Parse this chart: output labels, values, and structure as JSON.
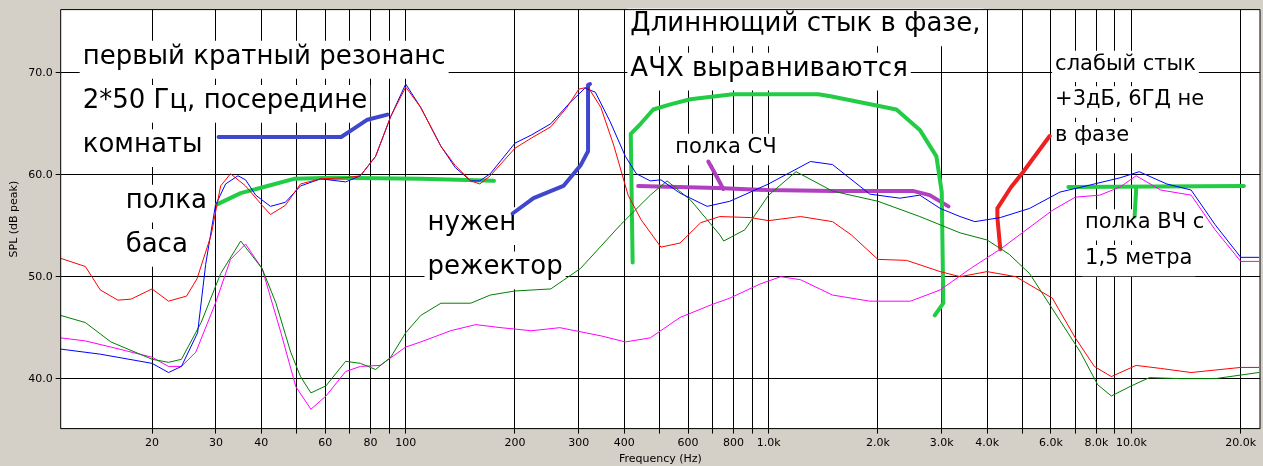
{
  "chart_data": {
    "type": "line",
    "xlabel": "Frequency (Hz)",
    "ylabel": "SPL (dB peak)",
    "log": "x",
    "grid": true,
    "legend": false,
    "marker": "none",
    "line_style": "solid",
    "xlim": [
      11.2,
      22600
    ],
    "ylim": [
      35.1,
      76.2
    ],
    "xticks": [
      {
        "value": 20,
        "label": "20"
      },
      {
        "value": 30,
        "label": "30"
      },
      {
        "value": 40,
        "label": "40"
      },
      {
        "value": 50,
        "label": null
      },
      {
        "value": 60,
        "label": "60"
      },
      {
        "value": 70,
        "label": null
      },
      {
        "value": 80,
        "label": "80"
      },
      {
        "value": 90,
        "label": null
      },
      {
        "value": 100,
        "label": "100"
      },
      {
        "value": 200,
        "label": "200"
      },
      {
        "value": 300,
        "label": "300"
      },
      {
        "value": 400,
        "label": "400"
      },
      {
        "value": 500,
        "label": null
      },
      {
        "value": 600,
        "label": "600"
      },
      {
        "value": 700,
        "label": null
      },
      {
        "value": 800,
        "label": "800"
      },
      {
        "value": 900,
        "label": null
      },
      {
        "value": 1000,
        "label": "1.0k"
      },
      {
        "value": 2000,
        "label": "2.0k"
      },
      {
        "value": 3000,
        "label": "3.0k"
      },
      {
        "value": 4000,
        "label": "4.0k"
      },
      {
        "value": 5000,
        "label": null
      },
      {
        "value": 6000,
        "label": "6.0k"
      },
      {
        "value": 7000,
        "label": null
      },
      {
        "value": 8000,
        "label": "8.0k"
      },
      {
        "value": 9000,
        "label": null
      },
      {
        "value": 10000,
        "label": "10.0k"
      },
      {
        "value": 20000,
        "label": "20.0k"
      }
    ],
    "yticks": [
      {
        "value": 40,
        "label": "40.0"
      },
      {
        "value": 50,
        "label": "50.0"
      },
      {
        "value": 60,
        "label": "60.0"
      },
      {
        "value": 70,
        "label": "70.0"
      }
    ],
    "series": [
      {
        "type": "line",
        "color": "#ff0000",
        "x": [
          11.2,
          13.1,
          14.4,
          16.1,
          17.5,
          20,
          22.2,
          24.9,
          26.6,
          29.1,
          30.9,
          32.9,
          36.2,
          40.2,
          42.4,
          46.6,
          51.3,
          58.3,
          68.3,
          75,
          82.6,
          90.9,
          100,
          110,
          125,
          137,
          151,
          160,
          171,
          200,
          222,
          251,
          278,
          300,
          318,
          345,
          375,
          410,
          445,
          505,
          570,
          650,
          734,
          889,
          1000,
          1225,
          1500,
          1690,
          2000,
          2400,
          2970,
          3370,
          4000,
          4800,
          6050,
          7000,
          7900,
          8800,
          10300,
          12040,
          14600,
          20000,
          22400
        ],
        "values": [
          51.8,
          51.0,
          48.7,
          47.7,
          47.8,
          48.8,
          47.6,
          48.1,
          49.8,
          54.1,
          58.9,
          60.1,
          58.9,
          57.0,
          56.1,
          57.0,
          59.1,
          59.6,
          59.7,
          59.9,
          61.8,
          65.7,
          68.6,
          66.6,
          62.8,
          60.9,
          59.4,
          59.1,
          59.9,
          62.6,
          63.6,
          64.7,
          66.6,
          68.4,
          68.6,
          66.6,
          62.8,
          58.0,
          55.6,
          52.9,
          53.3,
          55.3,
          55.9,
          55.8,
          55.5,
          55.9,
          55.4,
          54.1,
          51.7,
          51.6,
          50.5,
          50.0,
          50.5,
          50.0,
          47.9,
          44.0,
          41.2,
          40.2,
          41.3,
          41.0,
          40.6,
          41.1,
          41.1
        ]
      },
      {
        "type": "line",
        "color": "#0000ff",
        "x": [
          11.2,
          14.4,
          20,
          22.2,
          24.1,
          26.7,
          28.1,
          29.9,
          31.9,
          34.5,
          36.2,
          38.6,
          42.4,
          46.6,
          51.3,
          58.3,
          68.3,
          75,
          82.6,
          90.9,
          100,
          110,
          125,
          137,
          151,
          160,
          171,
          200,
          222,
          251,
          284,
          312,
          333,
          366,
          403,
          432,
          472,
          505,
          570,
          677,
          782,
          1000,
          1304,
          1500,
          1900,
          2300,
          2610,
          2970,
          3370,
          3700,
          4350,
          5240,
          6350,
          7700,
          9300,
          10500,
          12500,
          14600,
          17000,
          20000,
          22400
        ],
        "values": [
          42.9,
          42.4,
          41.5,
          40.6,
          41.2,
          44.5,
          51.2,
          57.0,
          59.1,
          59.9,
          59.5,
          58.0,
          56.9,
          57.3,
          58.9,
          59.6,
          59.3,
          59.9,
          61.8,
          65.7,
          68.9,
          66.6,
          62.8,
          60.7,
          59.4,
          59.4,
          60.1,
          63.1,
          63.9,
          65.0,
          67.1,
          68.5,
          68.1,
          65.2,
          61.8,
          60.1,
          59.4,
          59.5,
          58.2,
          56.9,
          57.4,
          59.1,
          61.3,
          61.0,
          58.1,
          57.7,
          58.0,
          56.7,
          55.9,
          55.4,
          55.8,
          56.7,
          58.3,
          59.0,
          59.7,
          60.3,
          59.1,
          58.5,
          55.1,
          51.9,
          51.9
        ]
      },
      {
        "type": "line",
        "color": "#008000",
        "x": [
          11.2,
          13.1,
          15.4,
          20,
          22.2,
          24.1,
          27.3,
          30.9,
          35.1,
          40.2,
          43.9,
          48.2,
          51.3,
          54.8,
          60.3,
          68.3,
          75,
          82.6,
          90.9,
          100,
          110,
          125,
          151,
          171,
          200,
          251,
          303,
          391,
          472,
          525,
          610,
          734,
          752,
          860,
          1000,
          1190,
          1500,
          2000,
          2610,
          3370,
          4000,
          4600,
          5240,
          6350,
          7230,
          8070,
          8800,
          10000,
          11200,
          13700,
          17000,
          22400
        ],
        "values": [
          46.2,
          45.5,
          43.6,
          41.9,
          41.6,
          41.9,
          45.5,
          50.3,
          53.5,
          50.8,
          47.4,
          42.6,
          40.2,
          38.6,
          39.3,
          41.7,
          41.5,
          40.9,
          42.1,
          44.5,
          46.2,
          47.4,
          47.4,
          48.2,
          48.6,
          48.8,
          50.8,
          55.1,
          58.0,
          59.4,
          57.5,
          54.1,
          53.5,
          54.6,
          58.0,
          60.3,
          58.4,
          57.4,
          55.9,
          54.3,
          53.6,
          52.2,
          50.3,
          45.7,
          42.6,
          39.4,
          38.3,
          39.3,
          40.1,
          40.0,
          40.0,
          40.6
        ]
      },
      {
        "type": "line",
        "color": "#ff00ff",
        "x": [
          11.2,
          13.1,
          15.4,
          20,
          22.2,
          24.1,
          26.4,
          29.9,
          32.9,
          36.2,
          40.2,
          45.3,
          49.8,
          54.8,
          60.3,
          68.3,
          75,
          85,
          100,
          110,
          133,
          156,
          183,
          222,
          266,
          345,
          403,
          472,
          570,
          690,
          782,
          950,
          1080,
          1225,
          1500,
          1900,
          2460,
          2970,
          3600,
          4350,
          6050,
          7000,
          8180,
          9300,
          10300,
          12040,
          14600,
          17000,
          20000,
          22400
        ],
        "values": [
          44.0,
          43.7,
          43.1,
          42.1,
          41.2,
          41.2,
          42.6,
          47.4,
          51.7,
          53.2,
          50.8,
          44.5,
          39.2,
          37.0,
          38.3,
          40.7,
          41.2,
          41.3,
          43.1,
          43.6,
          44.7,
          45.3,
          45.0,
          44.7,
          45.0,
          44.2,
          43.6,
          44.0,
          46.0,
          47.2,
          47.9,
          49.3,
          50.0,
          49.7,
          48.2,
          47.6,
          47.6,
          48.7,
          50.8,
          52.7,
          56.5,
          57.8,
          58.0,
          58.8,
          59.9,
          58.5,
          58.0,
          54.6,
          51.5,
          51.5
        ]
      },
      {
        "type": "line",
        "color": "#3f48cc",
        "x": [
          30.5,
          66.4,
          71.8,
          78.4,
          89
        ],
        "values": [
          63.7,
          63.7,
          64.5,
          65.4,
          65.9
        ]
      },
      {
        "type": "line",
        "color": "#3f48cc",
        "x": [
          197,
          225,
          272,
          303,
          318,
          318,
          322
        ],
        "values": [
          56.2,
          57.7,
          58.9,
          60.9,
          62.3,
          68.8,
          68.9
        ]
      },
      {
        "type": "line",
        "color": "#22cc44",
        "x": [
          30.2,
          35.1,
          41.6,
          49.2,
          63.2,
          110,
          175
        ],
        "values": [
          57.1,
          58.2,
          58.9,
          59.6,
          59.7,
          59.6,
          59.4
        ]
      },
      {
        "type": "line",
        "color": "#22cc44",
        "x": [
          422,
          417,
          444,
          481,
          536,
          609,
          797,
          1370,
          1480,
          2250,
          2610,
          2900,
          3000,
          3030,
          2870
        ],
        "values": [
          51.4,
          64.0,
          65.0,
          66.4,
          66.9,
          67.4,
          67.9,
          67.9,
          67.7,
          66.4,
          64.4,
          61.8,
          58.3,
          47.4,
          46.2
        ]
      },
      {
        "type": "line",
        "color": "#22cc44",
        "x": [
          6700,
          20400
        ],
        "values": [
          58.8,
          58.9
        ]
      },
      {
        "type": "line",
        "color": "#22cc44",
        "x": [
          10300,
          10200
        ],
        "values": [
          58.6,
          55.9
        ]
      },
      {
        "type": "line",
        "color": "#b040c0",
        "x": [
          437,
          723,
          990,
          1500,
          2510,
          2780,
          3130
        ],
        "values": [
          58.9,
          58.7,
          58.5,
          58.4,
          58.4,
          58.0,
          56.9
        ]
      },
      {
        "type": "line",
        "color": "#b040c0",
        "x": [
          682,
          725,
          750
        ],
        "values": [
          61.3,
          59.6,
          58.6
        ]
      },
      {
        "type": "line",
        "color": "#ee2020",
        "x": [
          5950,
          5010,
          4660,
          4270,
          4270,
          4350
        ],
        "values": [
          63.8,
          60.2,
          58.8,
          56.7,
          55.8,
          52.7
        ]
      }
    ],
    "annotations": [
      "первый кратный резонанс\n2*50 Гц, посередине\nкомнаты",
      "полка\nбаса",
      "нужен\nрежектор",
      "Длиннющий стык в фазе,\nАЧХ выравниваются",
      "полка СЧ",
      "слабый стык\n+3дБ, 6ГД не\nв фазе",
      "полка ВЧ с\n1,5 метра"
    ]
  }
}
